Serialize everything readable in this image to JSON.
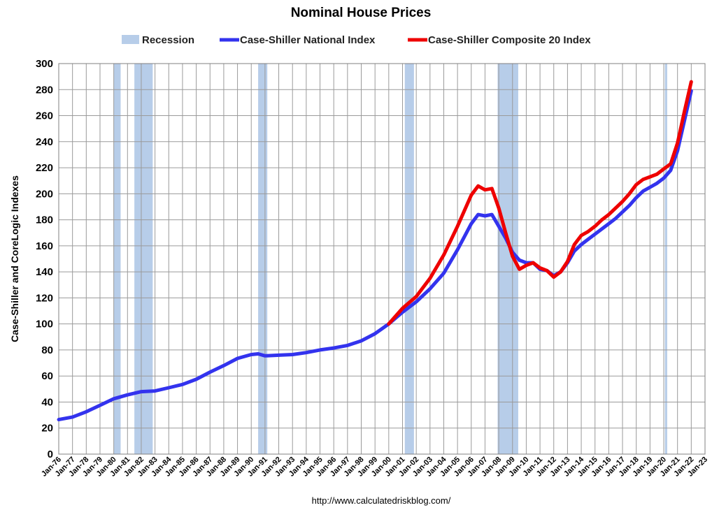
{
  "chart_data": {
    "type": "line",
    "title": "Nominal House Prices",
    "ylabel": "Case-Shiller and CoreLogic Indexes",
    "xlabel": "",
    "source": "http://www.calculatedriskblog.com/",
    "ylim": [
      0,
      300
    ],
    "yticks": [
      0,
      20,
      40,
      60,
      80,
      100,
      120,
      140,
      160,
      180,
      200,
      220,
      240,
      260,
      280,
      300
    ],
    "xlim": [
      1976,
      2023
    ],
    "x_tick_labels": [
      "Jan-76",
      "Jan-77",
      "Jan-78",
      "Jan-79",
      "Jan-80",
      "Jan-81",
      "Jan-82",
      "Jan-83",
      "Jan-84",
      "Jan-85",
      "Jan-86",
      "Jan-87",
      "Jan-88",
      "Jan-89",
      "Jan-90",
      "Jan-91",
      "Jan-92",
      "Jan-93",
      "Jan-94",
      "Jan-95",
      "Jan-96",
      "Jan-97",
      "Jan-98",
      "Jan-99",
      "Jan-00",
      "Jan-01",
      "Jan-02",
      "Jan-03",
      "Jan-04",
      "Jan-05",
      "Jan-06",
      "Jan-07",
      "Jan-08",
      "Jan-09",
      "Jan-10",
      "Jan-11",
      "Jan-12",
      "Jan-13",
      "Jan-14",
      "Jan-15",
      "Jan-16",
      "Jan-17",
      "Jan-18",
      "Jan-19",
      "Jan-20",
      "Jan-21",
      "Jan-22",
      "Jan-23"
    ],
    "grid": true,
    "legend_position": "top",
    "legend": [
      {
        "name": "Recession",
        "color": "#b7cde9",
        "kind": "box"
      },
      {
        "name": "Case-Shiller National Index",
        "color": "#3333ee",
        "kind": "line"
      },
      {
        "name": "Case-Shiller Composite 20 Index",
        "color": "#ee0000",
        "kind": "line"
      }
    ],
    "recessions": [
      {
        "start": "Jan-80",
        "end": "Jul-80"
      },
      {
        "start": "Jul-81",
        "end": "Nov-82"
      },
      {
        "start": "Jul-90",
        "end": "Mar-91"
      },
      {
        "start": "Mar-01",
        "end": "Nov-01"
      },
      {
        "start": "Dec-07",
        "end": "Jun-09"
      },
      {
        "start": "Feb-20",
        "end": "Apr-20"
      }
    ],
    "series": [
      {
        "name": "Case-Shiller National Index",
        "color": "#3333ee",
        "points": [
          [
            "Jan-76",
            26.5
          ],
          [
            "Jan-77",
            28.5
          ],
          [
            "Jan-78",
            32.5
          ],
          [
            "Jan-79",
            37.5
          ],
          [
            "Jan-80",
            42.5
          ],
          [
            "Jan-81",
            45.5
          ],
          [
            "Jan-82",
            48
          ],
          [
            "Jan-83",
            48.5
          ],
          [
            "Jan-84",
            51
          ],
          [
            "Jan-85",
            53.5
          ],
          [
            "Jan-86",
            57.5
          ],
          [
            "Jan-87",
            63
          ],
          [
            "Jan-88",
            68
          ],
          [
            "Jan-89",
            73.5
          ],
          [
            "Jan-90",
            76.5
          ],
          [
            "Jul-90",
            77
          ],
          [
            "Jan-91",
            75.5
          ],
          [
            "Jan-92",
            76
          ],
          [
            "Jan-93",
            76.5
          ],
          [
            "Jan-94",
            78
          ],
          [
            "Jan-95",
            80
          ],
          [
            "Jan-96",
            81.5
          ],
          [
            "Jan-97",
            83.5
          ],
          [
            "Jan-98",
            87
          ],
          [
            "Jan-99",
            92.5
          ],
          [
            "Jan-00",
            100
          ],
          [
            "Jan-01",
            109
          ],
          [
            "Jan-02",
            117
          ],
          [
            "Jan-03",
            127
          ],
          [
            "Jan-04",
            139
          ],
          [
            "Jan-05",
            157
          ],
          [
            "Jan-06",
            177
          ],
          [
            "Jul-06",
            184
          ],
          [
            "Jan-07",
            183
          ],
          [
            "Jul-07",
            184
          ],
          [
            "Jan-08",
            175
          ],
          [
            "Jul-08",
            166
          ],
          [
            "Jan-09",
            155
          ],
          [
            "Jul-09",
            149
          ],
          [
            "Jan-10",
            147
          ],
          [
            "Jul-10",
            147
          ],
          [
            "Jan-11",
            142
          ],
          [
            "Jul-11",
            141
          ],
          [
            "Jan-12",
            137
          ],
          [
            "Jul-12",
            140
          ],
          [
            "Jan-13",
            147
          ],
          [
            "Jul-13",
            156
          ],
          [
            "Jan-14",
            161
          ],
          [
            "Jul-14",
            165
          ],
          [
            "Jan-15",
            169
          ],
          [
            "Jul-15",
            173
          ],
          [
            "Jan-16",
            177
          ],
          [
            "Jul-16",
            181
          ],
          [
            "Jan-17",
            186
          ],
          [
            "Jul-17",
            191
          ],
          [
            "Jan-18",
            197
          ],
          [
            "Jul-18",
            202
          ],
          [
            "Jan-19",
            205
          ],
          [
            "Jul-19",
            208
          ],
          [
            "Jan-20",
            212
          ],
          [
            "Jul-20",
            218
          ],
          [
            "Jan-21",
            233
          ],
          [
            "Jul-21",
            256
          ],
          [
            "Jan-22",
            279
          ]
        ]
      },
      {
        "name": "Case-Shiller Composite 20 Index",
        "color": "#ee0000",
        "points": [
          [
            "Jan-00",
            100
          ],
          [
            "Jan-01",
            112
          ],
          [
            "Jan-02",
            121
          ],
          [
            "Jan-03",
            135
          ],
          [
            "Jan-04",
            153
          ],
          [
            "Jan-05",
            175
          ],
          [
            "Jan-06",
            199
          ],
          [
            "Jul-06",
            206
          ],
          [
            "Jan-07",
            203
          ],
          [
            "Jul-07",
            204
          ],
          [
            "Jan-08",
            189
          ],
          [
            "Jul-08",
            170
          ],
          [
            "Jan-09",
            152
          ],
          [
            "Jul-09",
            142
          ],
          [
            "Jan-10",
            145
          ],
          [
            "Jul-10",
            147
          ],
          [
            "Jan-11",
            143
          ],
          [
            "Jul-11",
            141
          ],
          [
            "Jan-12",
            136
          ],
          [
            "Jul-12",
            140
          ],
          [
            "Jan-13",
            148
          ],
          [
            "Jul-13",
            161
          ],
          [
            "Jan-14",
            168
          ],
          [
            "Jul-14",
            171
          ],
          [
            "Jan-15",
            175
          ],
          [
            "Jul-15",
            180
          ],
          [
            "Jan-16",
            184
          ],
          [
            "Jul-16",
            189
          ],
          [
            "Jan-17",
            194
          ],
          [
            "Jul-17",
            200
          ],
          [
            "Jan-18",
            207
          ],
          [
            "Jul-18",
            211
          ],
          [
            "Jan-19",
            213
          ],
          [
            "Jul-19",
            215
          ],
          [
            "Jan-20",
            219
          ],
          [
            "Jul-20",
            223
          ],
          [
            "Jan-21",
            239
          ],
          [
            "Jul-21",
            263
          ],
          [
            "Jan-22",
            286
          ]
        ]
      }
    ]
  }
}
